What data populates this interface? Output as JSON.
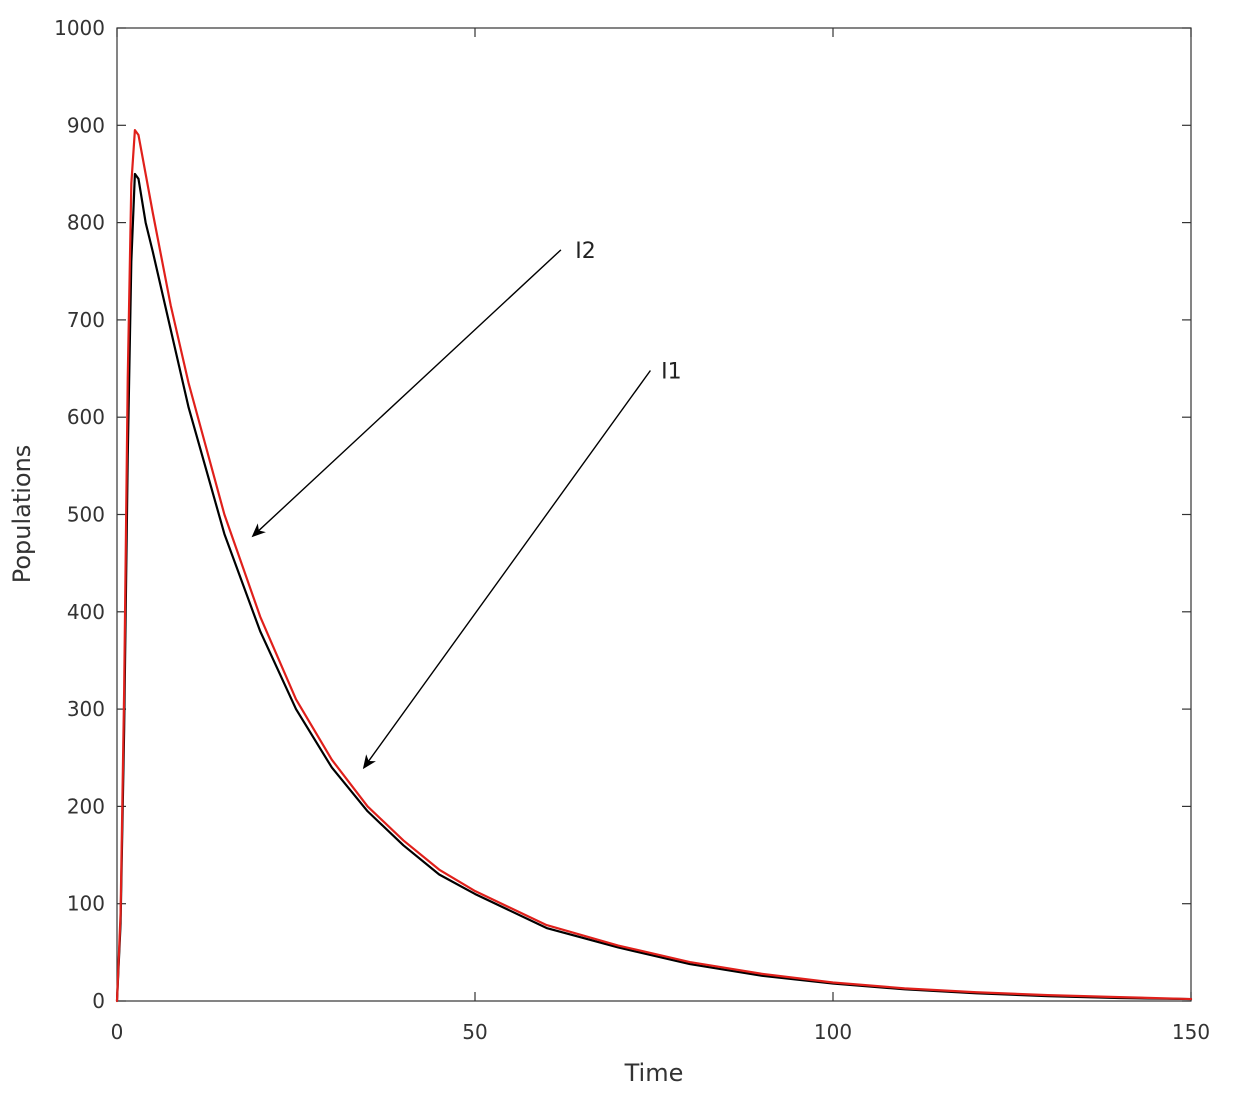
{
  "chart_data": {
    "type": "line",
    "title": "",
    "xlabel": "Time",
    "ylabel": "Populations",
    "xlim": [
      0,
      150
    ],
    "ylim": [
      0,
      1000
    ],
    "xticks": [
      0,
      50,
      100,
      150
    ],
    "xtick_labels": [
      "0",
      "50",
      "100",
      "150"
    ],
    "yticks": [
      0,
      100,
      200,
      300,
      400,
      500,
      600,
      700,
      800,
      900,
      1000
    ],
    "ytick_labels": [
      "0",
      "100",
      "200",
      "300",
      "400",
      "500",
      "600",
      "700",
      "800",
      "900",
      "1000"
    ],
    "grid": false,
    "legend": "none",
    "series": [
      {
        "color": "#000000",
        "x": [
          0,
          0.5,
          1,
          1.5,
          2,
          2.5,
          3,
          4,
          5,
          7.5,
          10,
          15,
          20,
          25,
          30,
          35,
          40,
          45,
          50,
          60,
          70,
          80,
          90,
          100,
          110,
          120,
          130,
          140,
          150
        ],
        "y": [
          0,
          80,
          280,
          560,
          760,
          850,
          845,
          800,
          770,
          690,
          610,
          480,
          380,
          300,
          240,
          195,
          160,
          130,
          110,
          75,
          55,
          38,
          26,
          18,
          12,
          8,
          5,
          3,
          2
        ]
      },
      {
        "color": "#e0201b",
        "x": [
          0,
          0.5,
          1,
          1.5,
          2,
          2.5,
          3,
          4,
          5,
          7.5,
          10,
          15,
          20,
          25,
          30,
          35,
          40,
          45,
          50,
          60,
          70,
          80,
          90,
          100,
          110,
          120,
          130,
          140,
          150
        ],
        "y": [
          0,
          90,
          320,
          640,
          840,
          895,
          890,
          850,
          810,
          715,
          635,
          500,
          395,
          310,
          248,
          200,
          165,
          135,
          113,
          78,
          57,
          40,
          28,
          19,
          13,
          9,
          6,
          4,
          2
        ]
      }
    ],
    "annotations": [
      {
        "text": "I2",
        "text_x": 64,
        "text_y": 772,
        "arrow_from": [
          62,
          772
        ],
        "arrow_to": [
          19,
          478
        ]
      },
      {
        "text": "I1",
        "text_x": 76,
        "text_y": 648,
        "arrow_from": [
          74.5,
          648
        ],
        "arrow_to": [
          34.5,
          240
        ]
      }
    ]
  }
}
